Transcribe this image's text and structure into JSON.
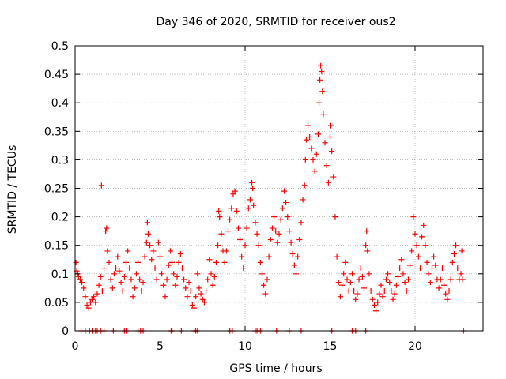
{
  "chart_data": {
    "type": "scatter",
    "title": "Day 346 of 2020, SRMTID for receiver ous2",
    "xlabel": "GPS time / hours",
    "ylabel": "SRMTID / TECUs",
    "xlim": [
      0,
      24
    ],
    "ylim": [
      0,
      0.5
    ],
    "x_ticks": [
      0,
      5,
      10,
      15,
      20
    ],
    "x_tick_labels": [
      "0",
      "5",
      "10",
      "15",
      "20"
    ],
    "y_ticks": [
      0,
      0.05,
      0.1,
      0.15,
      0.2,
      0.25,
      0.3,
      0.35,
      0.4,
      0.45,
      0.5
    ],
    "y_tick_labels": [
      "0",
      "0.05",
      "0.1",
      "0.15",
      "0.2",
      "0.25",
      "0.3",
      "0.35",
      "0.4",
      "0.45",
      "0.5"
    ],
    "grid": true,
    "marker": "+",
    "marker_color": "#ff0000",
    "series": [
      {
        "name": "SRMTID",
        "description_note": "dense scatter of '+' markers; representative sampled points",
        "points": [
          [
            0.05,
            0.12
          ],
          [
            0.1,
            0.105
          ],
          [
            0.15,
            0.1
          ],
          [
            0.2,
            0.095
          ],
          [
            0.3,
            0.09
          ],
          [
            0.4,
            0.085
          ],
          [
            0.5,
            0.075
          ],
          [
            0.6,
            0.06
          ],
          [
            0.7,
            0.045
          ],
          [
            0.8,
            0.04
          ],
          [
            0.9,
            0.05
          ],
          [
            1.0,
            0.055
          ],
          [
            1.1,
            0.06
          ],
          [
            1.2,
            0.05
          ],
          [
            1.3,
            0.065
          ],
          [
            1.4,
            0.08
          ],
          [
            1.5,
            0.095
          ],
          [
            1.55,
            0.255
          ],
          [
            1.6,
            0.07
          ],
          [
            1.7,
            0.11
          ],
          [
            1.8,
            0.175
          ],
          [
            1.85,
            0.18
          ],
          [
            1.9,
            0.14
          ],
          [
            2.0,
            0.12
          ],
          [
            2.1,
            0.09
          ],
          [
            2.2,
            0.075
          ],
          [
            2.3,
            0.1
          ],
          [
            2.4,
            0.11
          ],
          [
            2.5,
            0.13
          ],
          [
            2.6,
            0.105
          ],
          [
            2.7,
            0.085
          ],
          [
            2.8,
            0.07
          ],
          [
            2.9,
            0.095
          ],
          [
            3.0,
            0.12
          ],
          [
            3.1,
            0.14
          ],
          [
            3.2,
            0.11
          ],
          [
            3.3,
            0.09
          ],
          [
            3.4,
            0.06
          ],
          [
            3.5,
            0.075
          ],
          [
            3.6,
            0.1
          ],
          [
            3.7,
            0.12
          ],
          [
            3.8,
            0.09
          ],
          [
            3.9,
            0.07
          ],
          [
            4.0,
            0.085
          ],
          [
            4.1,
            0.13
          ],
          [
            4.2,
            0.155
          ],
          [
            4.25,
            0.19
          ],
          [
            4.3,
            0.17
          ],
          [
            4.4,
            0.15
          ],
          [
            4.5,
            0.125
          ],
          [
            4.6,
            0.14
          ],
          [
            4.7,
            0.11
          ],
          [
            4.8,
            0.09
          ],
          [
            4.9,
            0.155
          ],
          [
            5.0,
            0.13
          ],
          [
            5.1,
            0.1
          ],
          [
            5.2,
            0.08
          ],
          [
            5.3,
            0.06
          ],
          [
            5.4,
            0.09
          ],
          [
            5.5,
            0.115
          ],
          [
            5.6,
            0.14
          ],
          [
            5.7,
            0.12
          ],
          [
            5.8,
            0.1
          ],
          [
            5.9,
            0.08
          ],
          [
            6.0,
            0.095
          ],
          [
            6.1,
            0.12
          ],
          [
            6.2,
            0.135
          ],
          [
            6.3,
            0.11
          ],
          [
            6.4,
            0.09
          ],
          [
            6.5,
            0.075
          ],
          [
            6.6,
            0.06
          ],
          [
            6.7,
            0.085
          ],
          [
            6.8,
            0.07
          ],
          [
            6.9,
            0.045
          ],
          [
            7.0,
            0.04
          ],
          [
            7.1,
            0.06
          ],
          [
            7.2,
            0.1
          ],
          [
            7.3,
            0.075
          ],
          [
            7.4,
            0.065
          ],
          [
            7.5,
            0.055
          ],
          [
            7.6,
            0.05
          ],
          [
            7.7,
            0.07
          ],
          [
            7.8,
            0.09
          ],
          [
            7.9,
            0.125
          ],
          [
            8.0,
            0.1
          ],
          [
            8.1,
            0.08
          ],
          [
            8.2,
            0.095
          ],
          [
            8.3,
            0.12
          ],
          [
            8.4,
            0.15
          ],
          [
            8.45,
            0.21
          ],
          [
            8.5,
            0.2
          ],
          [
            8.6,
            0.17
          ],
          [
            8.7,
            0.14
          ],
          [
            8.8,
            0.12
          ],
          [
            8.9,
            0.14
          ],
          [
            9.0,
            0.175
          ],
          [
            9.1,
            0.195
          ],
          [
            9.2,
            0.215
          ],
          [
            9.3,
            0.24
          ],
          [
            9.4,
            0.245
          ],
          [
            9.5,
            0.21
          ],
          [
            9.6,
            0.18
          ],
          [
            9.7,
            0.16
          ],
          [
            9.8,
            0.13
          ],
          [
            9.9,
            0.11
          ],
          [
            10.0,
            0.15
          ],
          [
            10.1,
            0.18
          ],
          [
            10.2,
            0.215
          ],
          [
            10.3,
            0.23
          ],
          [
            10.4,
            0.26
          ],
          [
            10.45,
            0.25
          ],
          [
            10.5,
            0.22
          ],
          [
            10.6,
            0.19
          ],
          [
            10.7,
            0.17
          ],
          [
            10.8,
            0.15
          ],
          [
            10.9,
            0.12
          ],
          [
            11.0,
            0.1
          ],
          [
            11.1,
            0.08
          ],
          [
            11.2,
            0.065
          ],
          [
            11.3,
            0.09
          ],
          [
            11.4,
            0.13
          ],
          [
            11.5,
            0.16
          ],
          [
            11.6,
            0.18
          ],
          [
            11.7,
            0.2
          ],
          [
            11.8,
            0.175
          ],
          [
            11.9,
            0.155
          ],
          [
            12.0,
            0.17
          ],
          [
            12.1,
            0.195
          ],
          [
            12.2,
            0.215
          ],
          [
            12.3,
            0.245
          ],
          [
            12.4,
            0.225
          ],
          [
            12.5,
            0.2
          ],
          [
            12.6,
            0.175
          ],
          [
            12.7,
            0.155
          ],
          [
            12.8,
            0.135
          ],
          [
            12.9,
            0.115
          ],
          [
            13.0,
            0.1
          ],
          [
            13.1,
            0.13
          ],
          [
            13.2,
            0.16
          ],
          [
            13.3,
            0.19
          ],
          [
            13.4,
            0.23
          ],
          [
            13.5,
            0.255
          ],
          [
            13.55,
            0.3
          ],
          [
            13.6,
            0.335
          ],
          [
            13.7,
            0.36
          ],
          [
            13.8,
            0.34
          ],
          [
            13.9,
            0.32
          ],
          [
            14.0,
            0.3
          ],
          [
            14.1,
            0.28
          ],
          [
            14.2,
            0.31
          ],
          [
            14.3,
            0.345
          ],
          [
            14.35,
            0.4
          ],
          [
            14.4,
            0.44
          ],
          [
            14.45,
            0.465
          ],
          [
            14.5,
            0.455
          ],
          [
            14.55,
            0.42
          ],
          [
            14.6,
            0.38
          ],
          [
            14.7,
            0.33
          ],
          [
            14.8,
            0.29
          ],
          [
            14.9,
            0.26
          ],
          [
            15.0,
            0.34
          ],
          [
            15.05,
            0.36
          ],
          [
            15.1,
            0.315
          ],
          [
            15.2,
            0.27
          ],
          [
            15.3,
            0.2
          ],
          [
            15.4,
            0.13
          ],
          [
            15.5,
            0.085
          ],
          [
            15.6,
            0.06
          ],
          [
            15.7,
            0.08
          ],
          [
            15.8,
            0.1
          ],
          [
            15.9,
            0.12
          ],
          [
            16.0,
            0.09
          ],
          [
            16.1,
            0.07
          ],
          [
            16.2,
            0.085
          ],
          [
            16.3,
            0.1
          ],
          [
            16.4,
            0.07
          ],
          [
            16.5,
            0.055
          ],
          [
            16.6,
            0.065
          ],
          [
            16.7,
            0.09
          ],
          [
            16.8,
            0.11
          ],
          [
            16.9,
            0.095
          ],
          [
            17.0,
            0.075
          ],
          [
            17.1,
            0.15
          ],
          [
            17.15,
            0.175
          ],
          [
            17.2,
            0.14
          ],
          [
            17.3,
            0.1
          ],
          [
            17.4,
            0.07
          ],
          [
            17.5,
            0.055
          ],
          [
            17.6,
            0.045
          ],
          [
            17.7,
            0.035
          ],
          [
            17.8,
            0.05
          ],
          [
            17.9,
            0.065
          ],
          [
            18.0,
            0.08
          ],
          [
            18.1,
            0.06
          ],
          [
            18.2,
            0.07
          ],
          [
            18.3,
            0.09
          ],
          [
            18.4,
            0.1
          ],
          [
            18.5,
            0.085
          ],
          [
            18.6,
            0.07
          ],
          [
            18.7,
            0.055
          ],
          [
            18.8,
            0.065
          ],
          [
            18.9,
            0.08
          ],
          [
            19.0,
            0.095
          ],
          [
            19.1,
            0.11
          ],
          [
            19.2,
            0.125
          ],
          [
            19.3,
            0.1
          ],
          [
            19.4,
            0.085
          ],
          [
            19.5,
            0.07
          ],
          [
            19.6,
            0.09
          ],
          [
            19.7,
            0.115
          ],
          [
            19.8,
            0.14
          ],
          [
            19.9,
            0.2
          ],
          [
            20.0,
            0.17
          ],
          [
            20.1,
            0.15
          ],
          [
            20.2,
            0.13
          ],
          [
            20.3,
            0.11
          ],
          [
            20.4,
            0.165
          ],
          [
            20.5,
            0.185
          ],
          [
            20.6,
            0.15
          ],
          [
            20.7,
            0.12
          ],
          [
            20.8,
            0.1
          ],
          [
            20.9,
            0.085
          ],
          [
            21.0,
            0.11
          ],
          [
            21.1,
            0.13
          ],
          [
            21.2,
            0.115
          ],
          [
            21.3,
            0.09
          ],
          [
            21.4,
            0.075
          ],
          [
            21.5,
            0.09
          ],
          [
            21.6,
            0.11
          ],
          [
            21.7,
            0.08
          ],
          [
            21.8,
            0.065
          ],
          [
            21.9,
            0.055
          ],
          [
            22.0,
            0.07
          ],
          [
            22.1,
            0.09
          ],
          [
            22.2,
            0.12
          ],
          [
            22.3,
            0.135
          ],
          [
            22.4,
            0.15
          ],
          [
            22.5,
            0.11
          ],
          [
            22.6,
            0.09
          ],
          [
            22.7,
            0.1
          ],
          [
            22.75,
            0.14
          ],
          [
            22.8,
            0.09
          ]
        ]
      },
      {
        "name": "zero_points",
        "points": [
          [
            0.35,
            0
          ],
          [
            0.6,
            0
          ],
          [
            0.85,
            0
          ],
          [
            1.0,
            0
          ],
          [
            1.2,
            0
          ],
          [
            1.3,
            0
          ],
          [
            1.5,
            0
          ],
          [
            1.7,
            0
          ],
          [
            2.25,
            0
          ],
          [
            2.9,
            0
          ],
          [
            3.05,
            0
          ],
          [
            3.7,
            0
          ],
          [
            3.85,
            0
          ],
          [
            4.0,
            0
          ],
          [
            5.65,
            0
          ],
          [
            5.7,
            0
          ],
          [
            6.25,
            0
          ],
          [
            7.0,
            0
          ],
          [
            7.1,
            0
          ],
          [
            7.2,
            0
          ],
          [
            9.1,
            0
          ],
          [
            9.25,
            0
          ],
          [
            10.6,
            0
          ],
          [
            10.7,
            0
          ],
          [
            10.9,
            0
          ],
          [
            11.85,
            0
          ],
          [
            12.6,
            0
          ],
          [
            13.3,
            0
          ],
          [
            15.1,
            0
          ],
          [
            16.3,
            0
          ],
          [
            16.5,
            0
          ],
          [
            17.1,
            0
          ],
          [
            22.85,
            0
          ]
        ]
      }
    ]
  }
}
